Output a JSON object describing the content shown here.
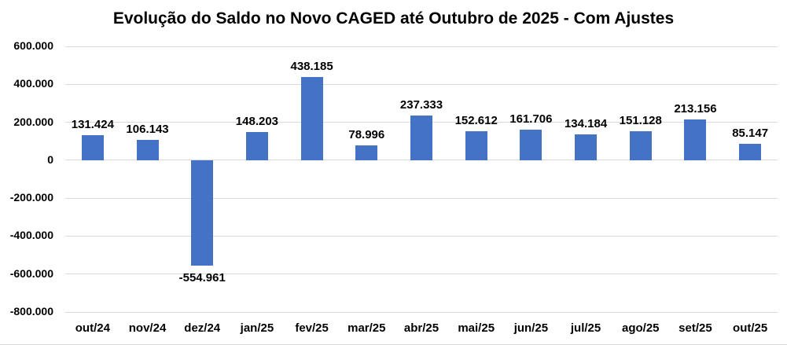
{
  "chart_data": {
    "type": "bar",
    "title": "Evolução do Saldo no Novo CAGED até Outubro de 2025 - Com Ajustes",
    "categories": [
      "out/24",
      "nov/24",
      "dez/24",
      "jan/25",
      "fev/25",
      "mar/25",
      "abr/25",
      "mai/25",
      "jun/25",
      "jul/25",
      "ago/25",
      "set/25",
      "out/25"
    ],
    "values": [
      131424,
      106143,
      -554961,
      148203,
      438185,
      78996,
      237333,
      152612,
      161706,
      134184,
      151128,
      213156,
      85147
    ],
    "value_labels": [
      "131.424",
      "106.143",
      "-554.961",
      "148.203",
      "438.185",
      "78.996",
      "237.333",
      "152.612",
      "161.706",
      "134.184",
      "151.128",
      "213.156",
      "85.147"
    ],
    "xlabel": "",
    "ylabel": "",
    "ylim": [
      -800000,
      600000
    ],
    "y_tick_values": [
      600000,
      400000,
      200000,
      0,
      -200000,
      -400000,
      -600000,
      -800000
    ],
    "y_tick_labels": [
      "600.000",
      "400.000",
      "200.000",
      "0",
      "-200.000",
      "-400.000",
      "-600.000",
      "-800.000"
    ],
    "grid": true,
    "legend": false,
    "bar_color": "#4472C4",
    "gridline_color": "#D9D9D9",
    "text_color": "#000000",
    "background_color": "#FFFFFF"
  }
}
